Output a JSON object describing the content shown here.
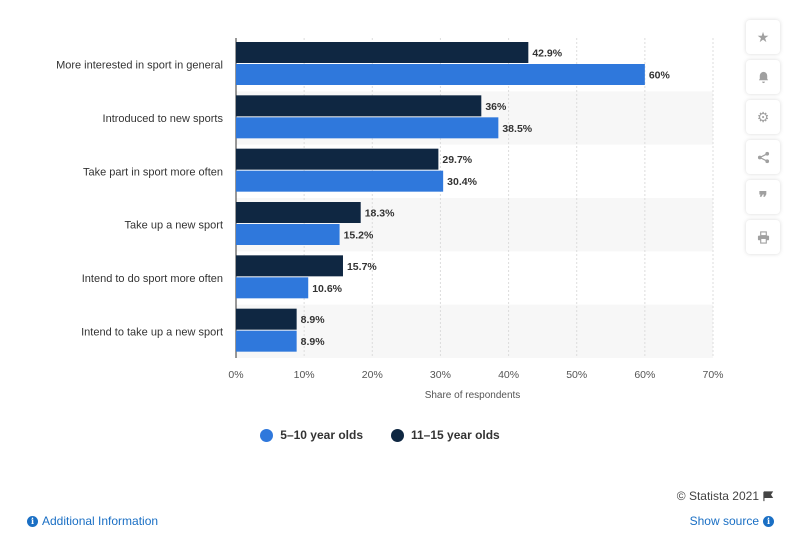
{
  "chart_data": {
    "type": "bar",
    "orientation": "horizontal",
    "categories": [
      "More interested in sport in general",
      "Introduced to new sports",
      "Take part in sport more often",
      "Take up a new sport",
      "Intend to do sport more often",
      "Intend to take up a new sport"
    ],
    "series": [
      {
        "name": "11-15 year olds",
        "color": "#0f2742",
        "values": [
          42.9,
          36,
          29.7,
          18.3,
          15.7,
          8.9
        ],
        "labels": [
          "42.9%",
          "36%",
          "29.7%",
          "18.3%",
          "15.7%",
          "8.9%"
        ]
      },
      {
        "name": "5-10 year olds",
        "color": "#2f78dc",
        "values": [
          60,
          38.5,
          30.4,
          15.2,
          10.6,
          8.9
        ],
        "labels": [
          "60%",
          "38.5%",
          "30.4%",
          "15.2%",
          "10.6%",
          "8.9%"
        ]
      }
    ],
    "xlabel": "Share of respondents",
    "xlim": [
      0,
      70
    ],
    "xticks": [
      0,
      10,
      20,
      30,
      40,
      50,
      60,
      70
    ],
    "xtick_labels": [
      "0%",
      "10%",
      "20%",
      "30%",
      "40%",
      "50%",
      "60%",
      "70%"
    ],
    "grid": true,
    "legend_position": "bottom"
  },
  "legend": {
    "items": [
      {
        "label": "5–10 year olds",
        "color": "#2f78dc"
      },
      {
        "label": "11–15 year olds",
        "color": "#0f2742"
      }
    ]
  },
  "sidebar": {
    "icons": [
      "star-icon",
      "bell-icon",
      "gear-icon",
      "share-icon",
      "quote-icon",
      "print-icon"
    ]
  },
  "footer": {
    "copyright": "© Statista 2021",
    "additional_info": "Additional Information",
    "show_source": "Show source"
  }
}
